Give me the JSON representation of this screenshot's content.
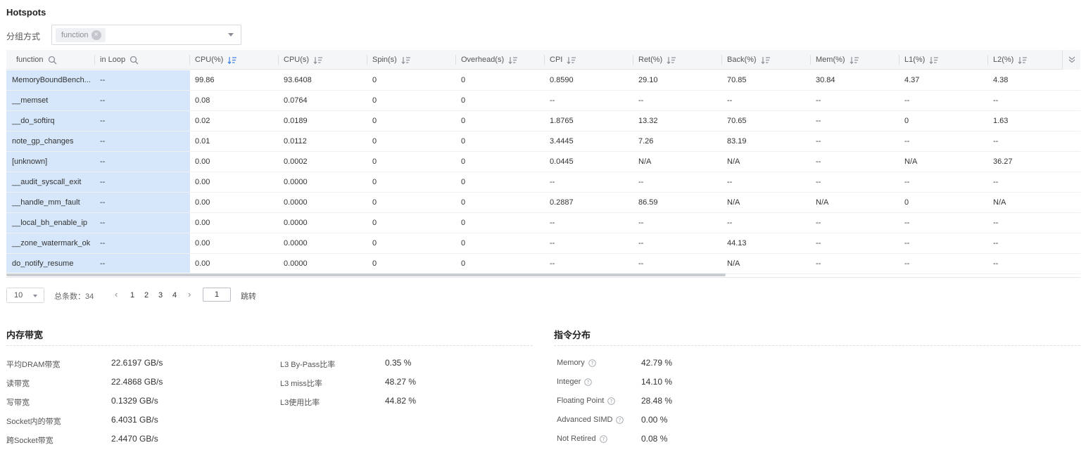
{
  "title": "Hotspots",
  "group_by": {
    "label": "分组方式",
    "chip": "function",
    "chip_remove": "×"
  },
  "table": {
    "headers": [
      "function",
      "in Loop",
      "CPU(%)",
      "CPU(s)",
      "Spin(s)",
      "Overhead(s)",
      "CPI",
      "Ret(%)",
      "Back(%)",
      "Mem(%)",
      "L1(%)",
      "L2(%)"
    ],
    "rows": [
      [
        "MemoryBoundBench...",
        "--",
        "99.86",
        "93.6408",
        "0",
        "0",
        "0.8590",
        "29.10",
        "70.85",
        "30.84",
        "4.37",
        "4.38"
      ],
      [
        "__memset",
        "--",
        "0.08",
        "0.0764",
        "0",
        "0",
        "--",
        "--",
        "--",
        "--",
        "--",
        "--"
      ],
      [
        "__do_softirq",
        "--",
        "0.02",
        "0.0189",
        "0",
        "0",
        "1.8765",
        "13.32",
        "70.65",
        "--",
        "0",
        "1.63"
      ],
      [
        "note_gp_changes",
        "--",
        "0.01",
        "0.0112",
        "0",
        "0",
        "3.4445",
        "7.26",
        "83.19",
        "--",
        "--",
        "--"
      ],
      [
        "[unknown]",
        "--",
        "0.00",
        "0.0002",
        "0",
        "0",
        "0.0445",
        "N/A",
        "N/A",
        "--",
        "N/A",
        "36.27"
      ],
      [
        "__audit_syscall_exit",
        "--",
        "0.00",
        "0.0000",
        "0",
        "0",
        "--",
        "--",
        "--",
        "--",
        "--",
        "--"
      ],
      [
        "__handle_mm_fault",
        "--",
        "0.00",
        "0.0000",
        "0",
        "0",
        "0.2887",
        "86.59",
        "N/A",
        "N/A",
        "0",
        "N/A"
      ],
      [
        "__local_bh_enable_ip",
        "--",
        "0.00",
        "0.0000",
        "0",
        "0",
        "--",
        "--",
        "--",
        "--",
        "--",
        "--"
      ],
      [
        "__zone_watermark_ok",
        "--",
        "0.00",
        "0.0000",
        "0",
        "0",
        "--",
        "--",
        "44.13",
        "--",
        "--",
        "--"
      ],
      [
        "do_notify_resume",
        "--",
        "0.00",
        "0.0000",
        "0",
        "0",
        "--",
        "--",
        "N/A",
        "--",
        "--",
        "--"
      ]
    ]
  },
  "pager": {
    "page_size": "10",
    "total": "总条数：34",
    "prev": "‹",
    "next": "›",
    "pages": [
      "1",
      "2",
      "3",
      "4"
    ],
    "jump_value": "1",
    "jump_label": "跳转"
  },
  "memory_bandwidth": {
    "title": "内存带宽",
    "left": [
      {
        "label": "平均DRAM带宽",
        "value": "22.6197 GB/s"
      },
      {
        "label": "读带宽",
        "value": "22.4868 GB/s"
      },
      {
        "label": "写带宽",
        "value": "0.1329 GB/s"
      },
      {
        "label": "Socket内的带宽",
        "value": "6.4031 GB/s"
      },
      {
        "label": "跨Socket带宽",
        "value": "2.4470 GB/s"
      }
    ],
    "right": [
      {
        "label": "L3 By-Pass比率",
        "value": "0.35 %"
      },
      {
        "label": "L3 miss比率",
        "value": "48.27 %"
      },
      {
        "label": "L3使用比率",
        "value": "44.82 %"
      }
    ]
  },
  "instruction_distribution": {
    "title": "指令分布",
    "items": [
      {
        "label": "Memory",
        "value": "42.79 %"
      },
      {
        "label": "Integer",
        "value": "14.10 %"
      },
      {
        "label": "Floating Point",
        "value": "28.48 %"
      },
      {
        "label": "Advanced SIMD",
        "value": "0.00 %"
      },
      {
        "label": "Not Retired",
        "value": "0.08 %"
      }
    ]
  },
  "colors": {
    "frozen_column_bg": "#d6e7fb",
    "active_sort": "#3a7fe0"
  }
}
